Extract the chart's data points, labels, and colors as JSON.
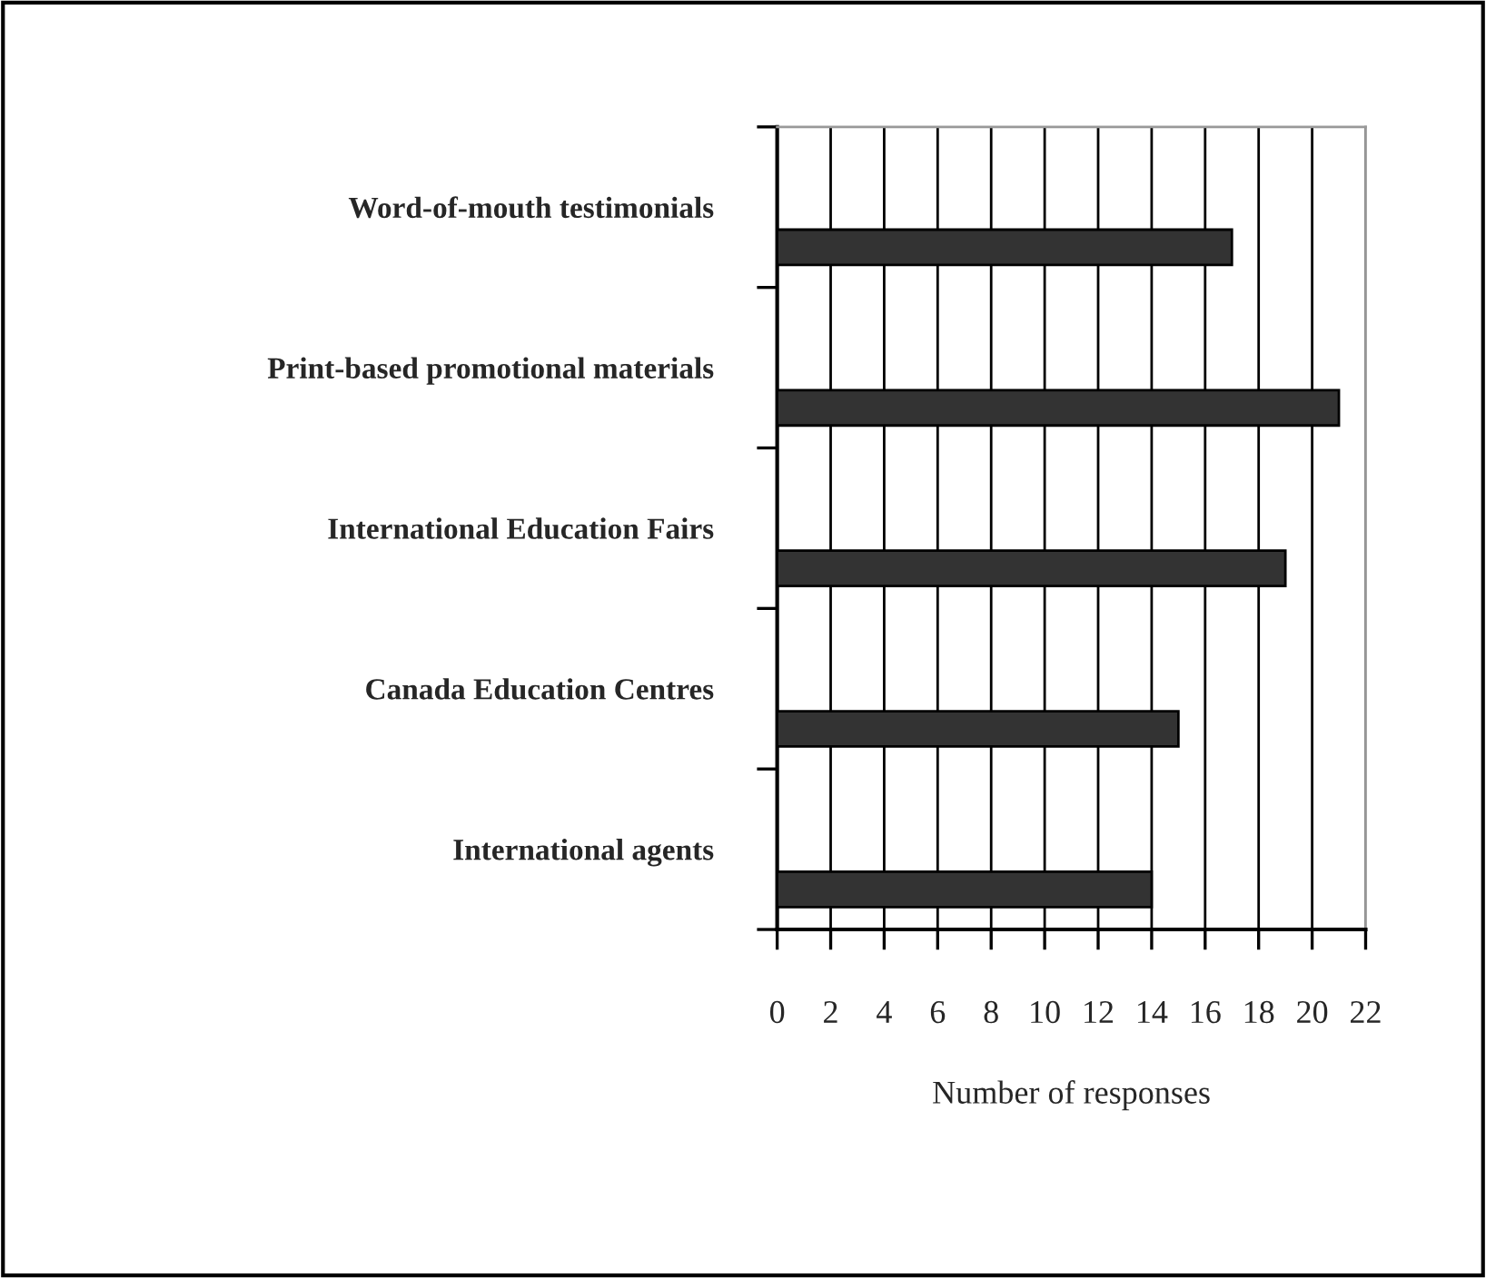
{
  "chart_data": {
    "type": "bar",
    "orientation": "horizontal",
    "xlabel": "Number of responses",
    "categories": [
      "Word-of-mouth testimonials",
      "Print-based promotional materials",
      "International Education Fairs",
      "Canada Education Centres",
      "International agents"
    ],
    "values": [
      17,
      21,
      19,
      15,
      14
    ],
    "color": "#333333",
    "xlim": [
      0,
      22
    ],
    "xticks": [
      0,
      2,
      4,
      6,
      8,
      10,
      12,
      14,
      16,
      18,
      20,
      22
    ],
    "grid": "x",
    "legend": false
  }
}
